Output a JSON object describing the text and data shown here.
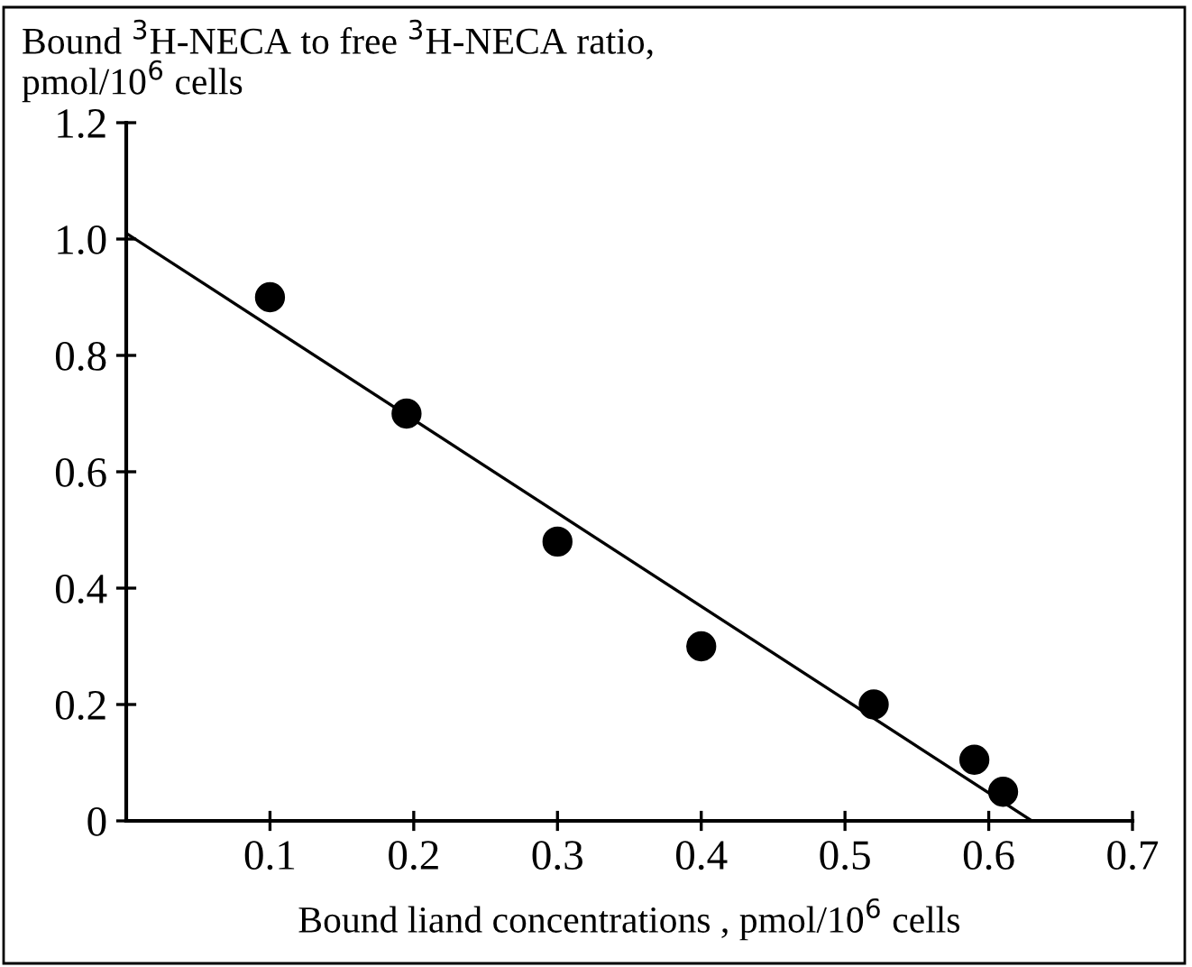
{
  "chart_data": {
    "type": "scatter",
    "ylabel": "Bound $^{3}$H-NECA to free $^{3}$H-NECA ratio,\npmol/10$^{6}$ cells",
    "xlabel": "Bound liand concentrations , pmol/10$^{6}$ cells",
    "xlim": [
      0,
      0.7
    ],
    "xticks": [
      0.1,
      0.2,
      0.3,
      0.4,
      0.5,
      0.6,
      0.7
    ],
    "ylim": [
      0,
      1.2
    ],
    "yticks": [
      0,
      0.2,
      0.4,
      0.6,
      0.8,
      {
        "value": 1.0,
        "label": "1.0"
      },
      1.2
    ],
    "grid": false,
    "legend": false,
    "series": [
      {
        "marker": "circle",
        "color": "#000000",
        "x": [
          0.1,
          0.195,
          0.3,
          0.4,
          0.52,
          0.59,
          0.61
        ],
        "values": [
          0.9,
          0.7,
          0.48,
          0.3,
          0.2,
          0.105,
          0.05
        ]
      },
      {
        "type": "line",
        "marker": "none",
        "color": "#000000",
        "line_style": "solid",
        "x": [
          0,
          0.63
        ],
        "values": [
          1.01,
          0
        ]
      }
    ]
  }
}
